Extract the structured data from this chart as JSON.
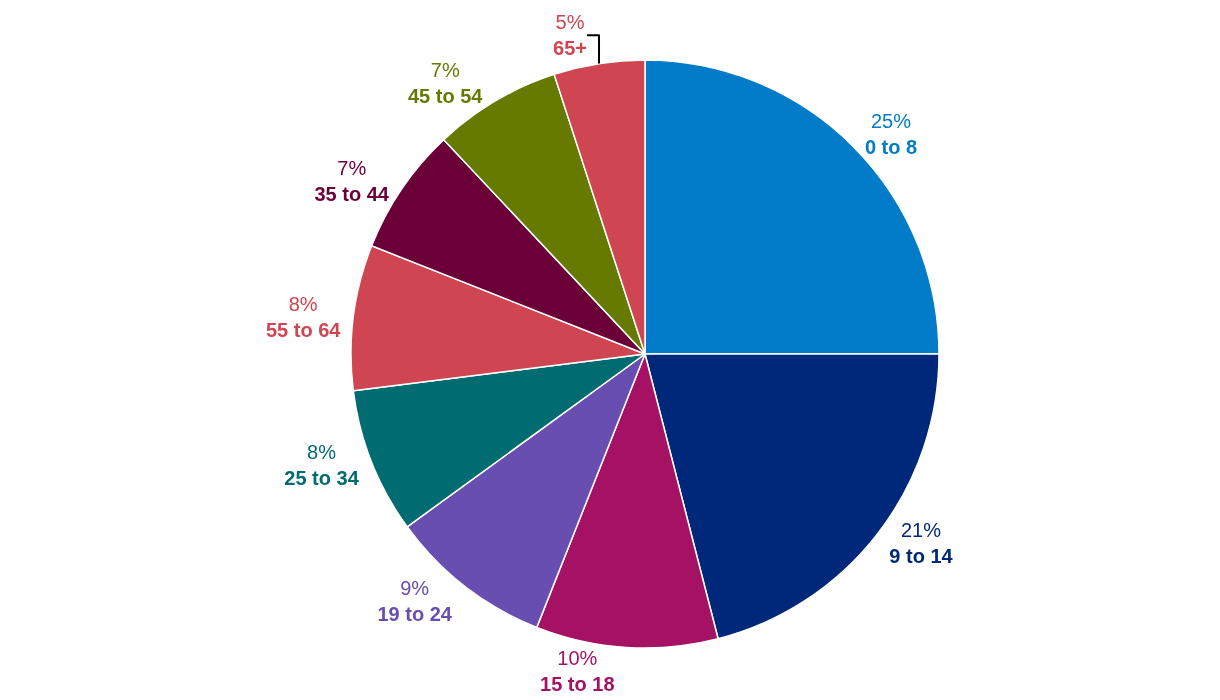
{
  "chart_data": {
    "type": "pie",
    "categories": [
      "0 to 8",
      "9 to 14",
      "15 to 18",
      "19 to 24",
      "25 to 34",
      "55 to 64",
      "35 to 44",
      "45 to 54",
      "65+"
    ],
    "values": [
      25,
      21,
      10,
      9,
      8,
      8,
      7,
      7,
      5
    ],
    "value_labels": [
      "25%",
      "21%",
      "10%",
      "9%",
      "8%",
      "8%",
      "7%",
      "7%",
      "5%"
    ],
    "colors": [
      "#027bc8",
      "#00287a",
      "#a51264",
      "#674eb0",
      "#006b70",
      "#cf4551",
      "#6b0039",
      "#667a00",
      "#cf4551"
    ],
    "legend": false
  }
}
